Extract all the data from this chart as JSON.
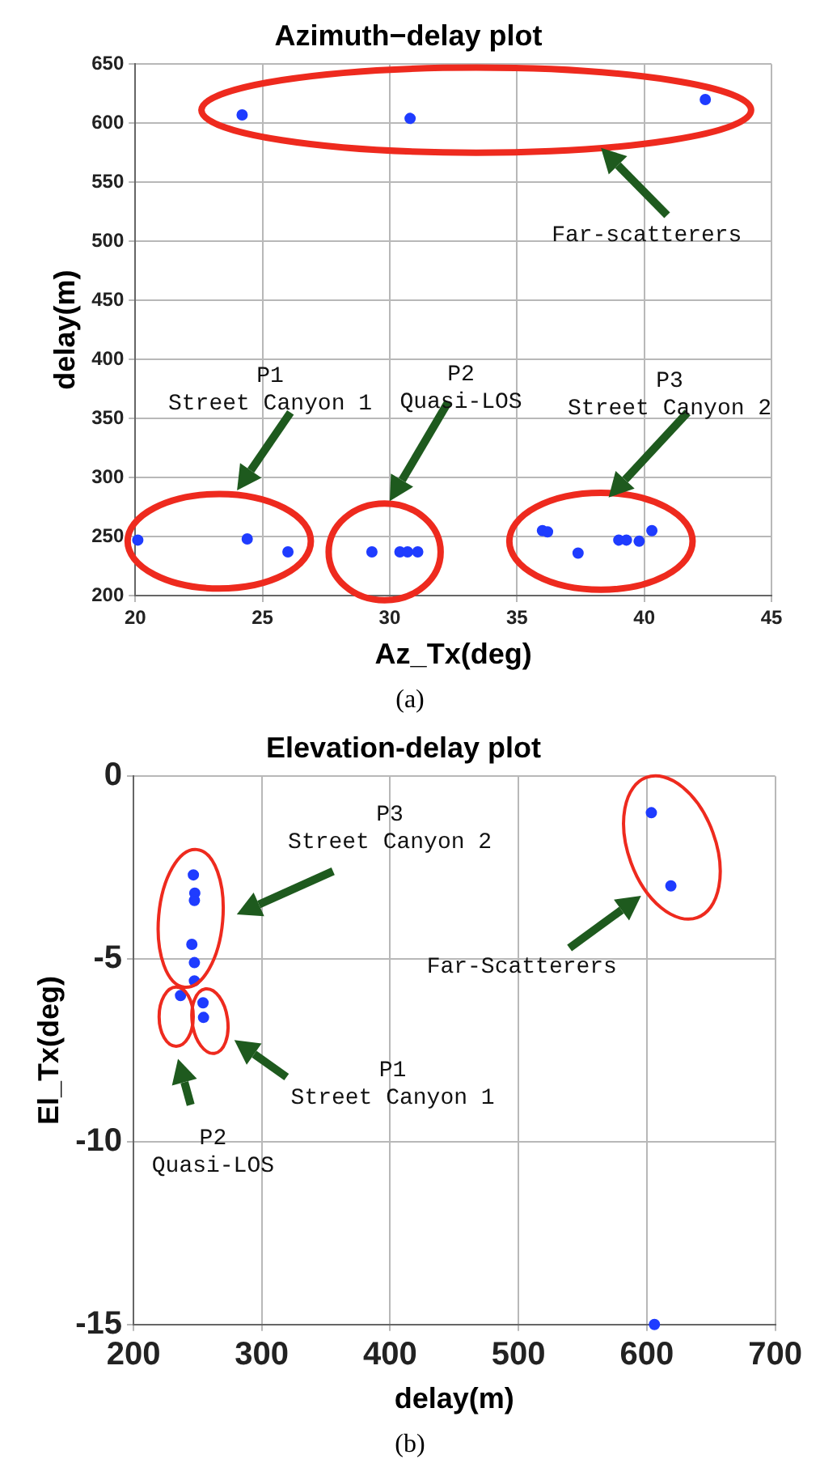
{
  "chart_data": [
    {
      "type": "scatter",
      "title": "Azimuth−delay plot",
      "xlabel": "Az_Tx(deg)",
      "ylabel": "delay(m)",
      "xlim": [
        20,
        45
      ],
      "xticks": [
        20,
        25,
        30,
        35,
        40,
        45
      ],
      "ylim": [
        200,
        650
      ],
      "yticks": [
        200,
        250,
        300,
        350,
        400,
        450,
        500,
        550,
        600,
        650
      ],
      "grid": true,
      "marker": "circle",
      "series": [
        {
          "color": "#1f3cff",
          "x": [
            24.2,
            30.8,
            42.4,
            20.1,
            24.4,
            26.0,
            29.3,
            30.4,
            30.7,
            31.1,
            36.0,
            36.2,
            37.4,
            39.0,
            39.3,
            39.8,
            40.3
          ],
          "values": [
            607,
            604,
            620,
            247,
            248,
            237,
            237,
            237,
            237,
            237,
            255,
            254,
            236,
            247,
            247,
            246,
            255
          ]
        }
      ],
      "annotations": [
        "P1\nStreet Canyon 1",
        "P2\nQuasi-LOS",
        "P3\nStreet Canyon 2",
        "Far-scatterers",
        "(a)"
      ]
    },
    {
      "type": "scatter",
      "title": "Elevation-delay plot",
      "xlabel": "delay(m)",
      "ylabel": "El_Tx(deg)",
      "xlim": [
        200,
        700
      ],
      "xticks": [
        200,
        300,
        400,
        500,
        600,
        700
      ],
      "ylim": [
        -15,
        0
      ],
      "yticks": [
        -15,
        -10,
        -5,
        0
      ],
      "grid": true,
      "marker": "circle",
      "series": [
        {
          "color": "#1f3cff",
          "x": [
            603.5,
            618.7,
            246.7,
            247.8,
            247.5,
            245.5,
            247.5,
            247.5,
            236.7,
            254.2,
            254.6,
            605.9
          ],
          "values": [
            -1.0,
            -3.0,
            -2.7,
            -3.2,
            -3.4,
            -4.6,
            -5.1,
            -5.6,
            -6.0,
            -6.2,
            -6.6,
            -15
          ]
        }
      ],
      "annotations": [
        "P3\nStreet Canyon 2",
        "Far-Scatterers",
        "P1\nStreet Canyon 1",
        "P2\nQuasi-LOS",
        "(b)"
      ]
    }
  ]
}
